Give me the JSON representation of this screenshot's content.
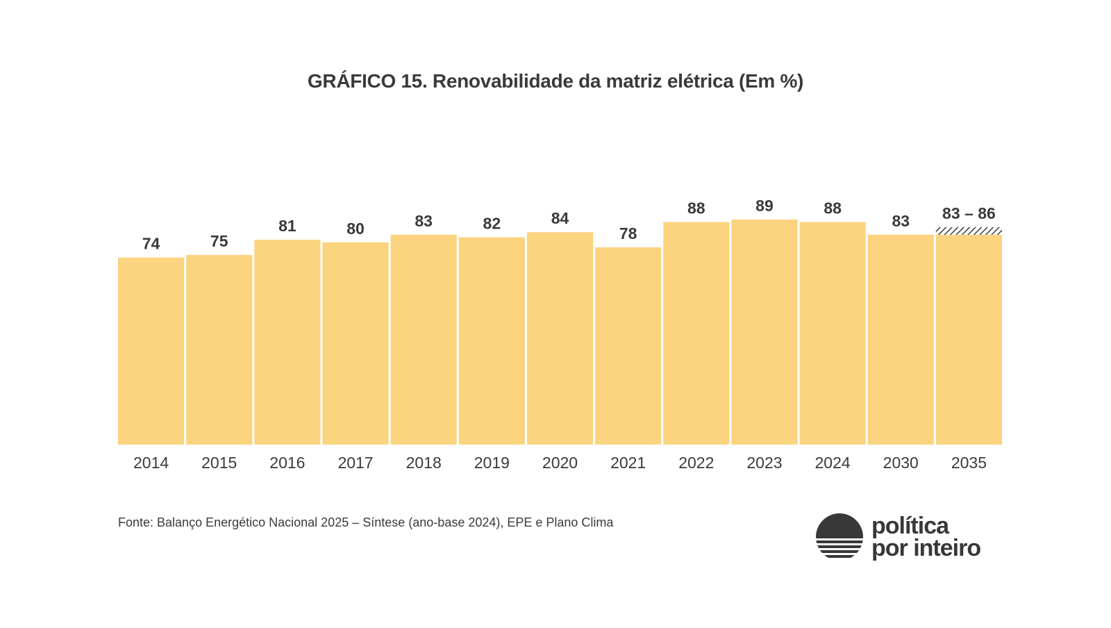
{
  "title": "GRÁFICO 15.  Renovabilidade da matriz elétrica (Em %)",
  "source": "Fonte: Balanço Energético Nacional 2025 – Síntese (ano-base 2024), EPE e Plano Clima",
  "logo": {
    "line1": "política",
    "line2": "por inteiro",
    "icon": "half-sun-horizon-logo"
  },
  "colors": {
    "bar": "#fcd37f",
    "text": "#3a3a3a",
    "range_hatch": "#3a3a3a"
  },
  "chart_data": {
    "type": "bar",
    "title": "GRÁFICO 15.  Renovabilidade da matriz elétrica (Em %)",
    "xlabel": "",
    "ylabel": "",
    "ylim": [
      0,
      100
    ],
    "grid": false,
    "categories": [
      "2014",
      "2015",
      "2016",
      "2017",
      "2018",
      "2019",
      "2020",
      "2021",
      "2022",
      "2023",
      "2024",
      "2030",
      "2035"
    ],
    "values": [
      74,
      75,
      81,
      80,
      83,
      82,
      84,
      78,
      88,
      89,
      88,
      83,
      83
    ],
    "labels": [
      "74",
      "75",
      "81",
      "80",
      "83",
      "82",
      "84",
      "78",
      "88",
      "89",
      "88",
      "83",
      "83 – 86"
    ],
    "ranges": [
      {
        "category": "2035",
        "low": 83,
        "high": 86,
        "style": "hatched"
      }
    ]
  }
}
